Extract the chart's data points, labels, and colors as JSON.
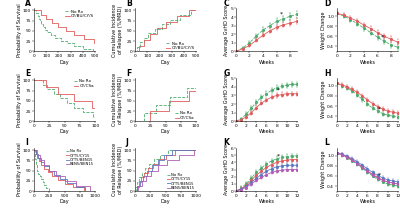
{
  "colors": {
    "green": "#4dab6d",
    "red": "#e05c5c",
    "blue": "#5b78c2",
    "purple": "#b05db8"
  },
  "legend_AB": [
    "No Rx",
    "CY/BU/CY/S"
  ],
  "legend_EF": [
    "No Rx",
    "CY/CSa"
  ],
  "legend_IJ": [
    "No Rx",
    "CYT5/CY15",
    "CYT5/BEN15",
    "BEN5/BEN15"
  ],
  "bg_color": "#ffffff",
  "tick_fontsize": 3.2,
  "label_fontsize": 3.5,
  "legend_fontsize": 3.0,
  "panel_label_fontsize": 5.5
}
